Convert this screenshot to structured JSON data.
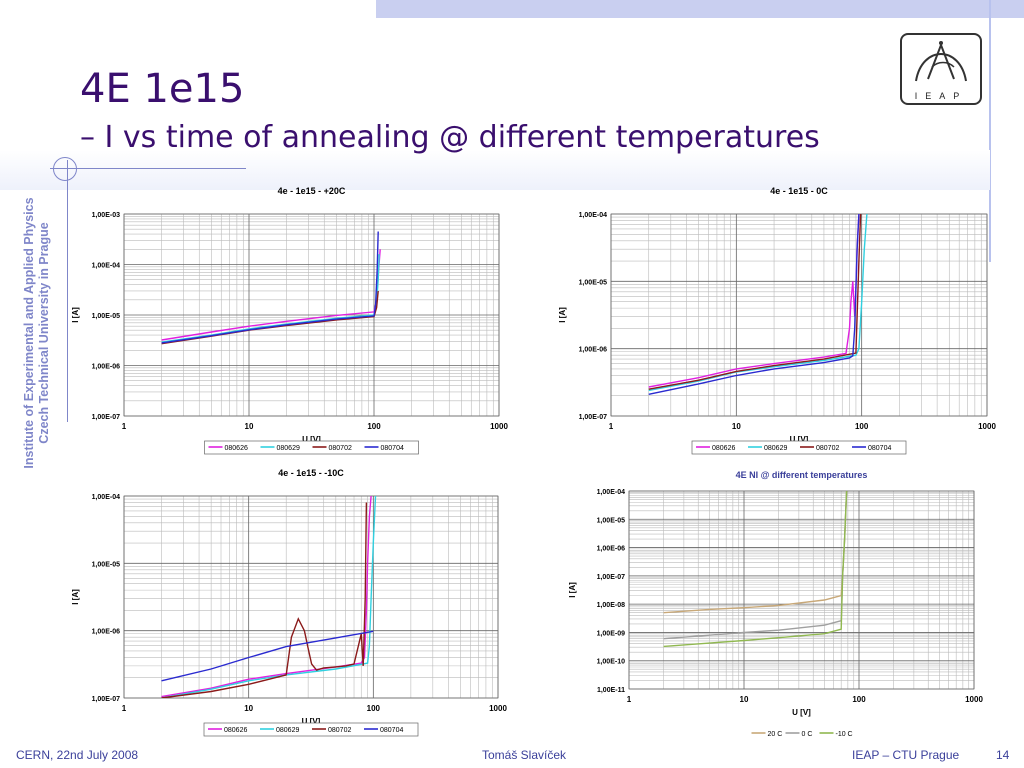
{
  "slide": {
    "title": "4E 1e15",
    "subtitle": "– I vs time of annealing @ different temperatures",
    "side_text": [
      "Institute of Experimental and Applied Physics",
      "Czech Technical University in Prague"
    ],
    "logo_text": "IEAP",
    "footer_left": "CERN, 22nd July 2008",
    "footer_center": "Tomáš Slavíček",
    "footer_right": "IEAP – CTU Prague",
    "page_number": "14",
    "colors": {
      "title": "#3a0f6e",
      "accent": "#7f86c9"
    }
  },
  "chart_data": [
    {
      "type": "line",
      "title": "4e - 1e15 - +20C",
      "xlabel": "U [V]",
      "ylabel": "I [A]",
      "x_scale": "log",
      "y_scale": "log",
      "xlim": [
        1,
        1000
      ],
      "ylim": [
        1e-07,
        0.001
      ],
      "xticks": [
        "1",
        "10",
        "100",
        "1000"
      ],
      "yticks": [
        "1,00E-07",
        "1,00E-06",
        "1,00E-05",
        "1,00E-04",
        "1,00E-03"
      ],
      "grid": true,
      "legend": "bottom",
      "series": [
        {
          "name": "080626",
          "color": "#e020e0",
          "x": [
            2,
            5,
            10,
            20,
            50,
            100,
            105,
            108,
            112
          ],
          "y": [
            3.2e-06,
            4.6e-06,
            6e-06,
            7.5e-06,
            9.8e-06,
            1.15e-05,
            2e-05,
            6e-05,
            0.0002
          ]
        },
        {
          "name": "080629",
          "color": "#30d0e0",
          "x": [
            2,
            5,
            10,
            20,
            50,
            100,
            105,
            108,
            110
          ],
          "y": [
            2.9e-06,
            4e-06,
            5.3e-06,
            6.6e-06,
            8.6e-06,
            1e-05,
            1.8e-05,
            5e-05,
            0.00016
          ]
        },
        {
          "name": "080702",
          "color": "#8b1a1a",
          "x": [
            2,
            5,
            10,
            20,
            50,
            100,
            105,
            108
          ],
          "y": [
            2.7e-06,
            3.8e-06,
            5e-06,
            6.2e-06,
            8e-06,
            9.3e-06,
            1.4e-05,
            3e-05
          ]
        },
        {
          "name": "080704",
          "color": "#2a2ad0",
          "x": [
            2,
            5,
            10,
            20,
            50,
            100,
            103,
            106,
            108
          ],
          "y": [
            2.8e-06,
            3.9e-06,
            5.1e-06,
            6.4e-06,
            8.3e-06,
            9.6e-06,
            1.6e-05,
            8e-05,
            0.00045
          ]
        }
      ]
    },
    {
      "type": "line",
      "title": "4e - 1e15 - 0C",
      "xlabel": "U [V]",
      "ylabel": "I [A]",
      "x_scale": "log",
      "y_scale": "log",
      "xlim": [
        1,
        1000
      ],
      "ylim": [
        1e-07,
        0.0001
      ],
      "xticks": [
        "1",
        "10",
        "100",
        "1000"
      ],
      "yticks": [
        "1,00E-07",
        "1,00E-06",
        "1,00E-05",
        "1,00E-04"
      ],
      "grid": true,
      "legend": "bottom",
      "series": [
        {
          "name": "080626",
          "color": "#e020e0",
          "x": [
            2,
            5,
            10,
            20,
            50,
            75,
            80,
            82,
            85,
            88,
            90,
            92,
            95
          ],
          "y": [
            2.7e-07,
            3.7e-07,
            5e-07,
            6e-07,
            7.5e-07,
            8.5e-07,
            2e-06,
            5e-06,
            1e-05,
            3e-06,
            8e-06,
            3e-05,
            0.0001
          ]
        },
        {
          "name": "080629",
          "color": "#30d0e0",
          "x": [
            2,
            5,
            10,
            20,
            50,
            90,
            95,
            100,
            105,
            110
          ],
          "y": [
            2.4e-07,
            3.3e-07,
            4.5e-07,
            5.4e-07,
            6.7e-07,
            8e-07,
            1e-06,
            5e-06,
            3e-05,
            0.0001
          ]
        },
        {
          "name": "080702",
          "color": "#8b1a1a",
          "x": [
            2,
            5,
            10,
            20,
            50,
            90,
            92,
            95,
            98
          ],
          "y": [
            2.5e-07,
            3.4e-07,
            4.6e-07,
            5.6e-07,
            7e-07,
            8.6e-07,
            3e-06,
            2e-05,
            0.0001
          ]
        },
        {
          "name": "080704",
          "color": "#2a2ad0",
          "x": [
            2,
            5,
            10,
            20,
            50,
            80,
            85,
            88,
            92,
            95
          ],
          "y": [
            2.1e-07,
            3e-07,
            4e-07,
            5e-07,
            6.2e-07,
            7.3e-07,
            7.8e-07,
            2e-06,
            3e-05,
            0.0001
          ]
        }
      ]
    },
    {
      "type": "line",
      "title": "4e - 1e15 - -10C",
      "xlabel": "U [V]",
      "ylabel": "I [A]",
      "x_scale": "log",
      "y_scale": "log",
      "xlim": [
        1,
        1000
      ],
      "ylim": [
        1e-07,
        0.0001
      ],
      "xticks": [
        "1",
        "10",
        "100",
        "1000"
      ],
      "yticks": [
        "1,00E-07",
        "1,00E-06",
        "1,00E-05",
        "1,00E-04"
      ],
      "grid": true,
      "legend": "bottom",
      "series": [
        {
          "name": "080626",
          "color": "#e020e0",
          "x": [
            2,
            5,
            10,
            20,
            50,
            80,
            85,
            88,
            90,
            93,
            96
          ],
          "y": [
            1.05e-07,
            1.4e-07,
            1.9e-07,
            2.3e-07,
            2.9e-07,
            3.3e-07,
            4e-07,
            2e-06,
            1e-05,
            5e-05,
            0.0001
          ]
        },
        {
          "name": "080629",
          "color": "#30d0e0",
          "x": [
            2,
            5,
            10,
            20,
            50,
            90,
            93,
            96,
            100,
            104
          ],
          "y": [
            1e-07,
            1.35e-07,
            1.8e-07,
            2.2e-07,
            2.7e-07,
            3.3e-07,
            6e-07,
            3e-06,
            2e-05,
            0.0001
          ]
        },
        {
          "name": "080702",
          "color": "#8b1a1a",
          "x": [
            2,
            5,
            10,
            20,
            22,
            25,
            28,
            30,
            32,
            35,
            40,
            50,
            60,
            70,
            80,
            83,
            86,
            88
          ],
          "y": [
            1e-07,
            1.25e-07,
            1.6e-07,
            2.2e-07,
            8e-07,
            1.5e-06,
            1e-06,
            5.5e-07,
            3.2e-07,
            2.6e-07,
            2.8e-07,
            2.9e-07,
            3e-07,
            3.2e-07,
            9e-07,
            3e-07,
            3e-06,
            8e-05
          ]
        },
        {
          "name": "080704",
          "color": "#2a2ad0",
          "x": [
            2,
            5,
            10,
            20,
            50,
            100
          ],
          "y": [
            1.8e-07,
            2.7e-07,
            4e-07,
            5.8e-07,
            7.8e-07,
            9.8e-07
          ]
        }
      ]
    },
    {
      "type": "line",
      "title": "4E NI @ different temperatures",
      "xlabel": "U [V]",
      "ylabel": "I [A]",
      "x_scale": "log",
      "y_scale": "log",
      "xlim": [
        1,
        1000
      ],
      "ylim": [
        1e-11,
        0.0001
      ],
      "xticks": [
        "1",
        "10",
        "100",
        "1000"
      ],
      "yticks": [
        "1,00E-11",
        "1,00E-10",
        "1,00E-09",
        "1,00E-08",
        "1,00E-07",
        "1,00E-06",
        "1,00E-05",
        "1,00E-04"
      ],
      "grid": true,
      "legend": "bottom",
      "series": [
        {
          "name": "20 C",
          "color": "#c8a878",
          "x": [
            2,
            5,
            10,
            20,
            50,
            70,
            72,
            75,
            78
          ],
          "y": [
            5e-09,
            6.5e-09,
            7.5e-09,
            9e-09,
            1.4e-08,
            2e-08,
            1e-07,
            2e-06,
            0.0001
          ]
        },
        {
          "name": "0 C",
          "color": "#a0a0a0",
          "x": [
            2,
            5,
            10,
            20,
            50,
            70,
            72,
            75,
            78
          ],
          "y": [
            6e-10,
            8e-10,
            1e-09,
            1.2e-09,
            1.8e-09,
            2.6e-09,
            1e-07,
            2e-06,
            0.0001
          ]
        },
        {
          "name": "-10 C",
          "color": "#90b850",
          "x": [
            2,
            5,
            10,
            20,
            50,
            70,
            72,
            75,
            78
          ],
          "y": [
            3.2e-10,
            4.2e-10,
            5.2e-10,
            6.5e-10,
            9e-10,
            1.3e-09,
            1e-07,
            2e-06,
            0.0001
          ]
        }
      ]
    }
  ]
}
